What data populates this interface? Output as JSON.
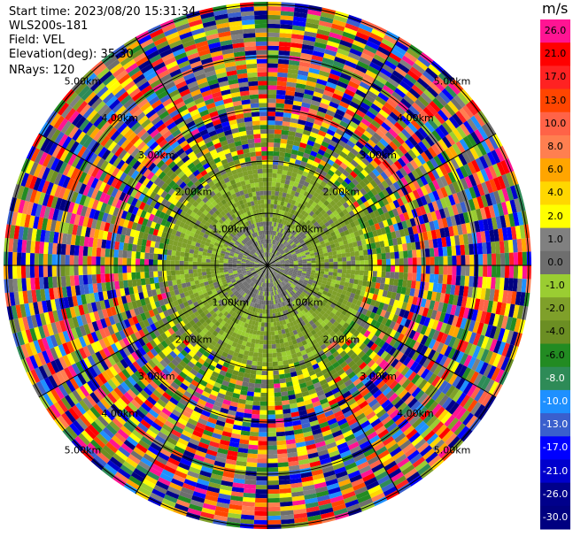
{
  "header": {
    "start_time": "Start time: 2023/08/20 15:31:34",
    "instrument": "WLS200s-181",
    "field": "Field: VEL",
    "elevation": "Elevation(deg): 35.30",
    "nrays": "NRays: 120"
  },
  "rings": {
    "labels": [
      "1.00km",
      "2.00km",
      "3.00km",
      "4.00km",
      "5.00km"
    ]
  },
  "colorbar": {
    "unit": "m/s",
    "ticks": [
      "26.0",
      "21.0",
      "17.0",
      "13.0",
      "10.0",
      "8.0",
      "6.0",
      "4.0",
      "2.0",
      "1.0",
      "0.0",
      "-1.0",
      "-2.0",
      "-4.0",
      "-6.0",
      "-8.0",
      "-10.0",
      "-13.0",
      "-17.0",
      "-21.0",
      "-26.0",
      "-30.0"
    ],
    "colors": [
      "#ff1493",
      "#ff0000",
      "#ff2222",
      "#ff4500",
      "#ff6347",
      "#ff7f50",
      "#ffa500",
      "#ffd700",
      "#ffff00",
      "#808080",
      "#6e6e6e",
      "#9acd32",
      "#7fa02a",
      "#6b8e23",
      "#228b22",
      "#2e8b57",
      "#1e90ff",
      "#3a5fcd",
      "#0000ff",
      "#0000cd",
      "#00008b",
      "#000080"
    ]
  }
}
